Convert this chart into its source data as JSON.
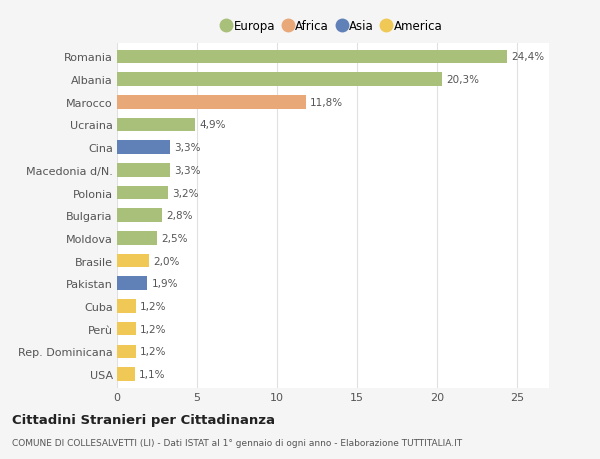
{
  "countries": [
    "Romania",
    "Albania",
    "Marocco",
    "Ucraina",
    "Cina",
    "Macedonia d/N.",
    "Polonia",
    "Bulgaria",
    "Moldova",
    "Brasile",
    "Pakistan",
    "Cuba",
    "Perù",
    "Rep. Dominicana",
    "USA"
  ],
  "values": [
    24.4,
    20.3,
    11.8,
    4.9,
    3.3,
    3.3,
    3.2,
    2.8,
    2.5,
    2.0,
    1.9,
    1.2,
    1.2,
    1.2,
    1.1
  ],
  "labels": [
    "24,4%",
    "20,3%",
    "11,8%",
    "4,9%",
    "3,3%",
    "3,3%",
    "3,2%",
    "2,8%",
    "2,5%",
    "2,0%",
    "1,9%",
    "1,2%",
    "1,2%",
    "1,2%",
    "1,1%"
  ],
  "continents": [
    "Europa",
    "Europa",
    "Africa",
    "Europa",
    "Asia",
    "Europa",
    "Europa",
    "Europa",
    "Europa",
    "America",
    "Asia",
    "America",
    "America",
    "America",
    "America"
  ],
  "colors": {
    "Europa": "#a8c07a",
    "Africa": "#e8a878",
    "Asia": "#6080b8",
    "America": "#f0c855"
  },
  "legend_order": [
    "Europa",
    "Africa",
    "Asia",
    "America"
  ],
  "xlim": [
    0,
    27
  ],
  "xticks": [
    0,
    5,
    10,
    15,
    20,
    25
  ],
  "title": "Cittadini Stranieri per Cittadinanza",
  "subtitle": "COMUNE DI COLLESALVETTI (LI) - Dati ISTAT al 1° gennaio di ogni anno - Elaborazione TUTTITALIA.IT",
  "bg_color": "#f5f5f5",
  "bar_bg_color": "#ffffff",
  "grid_color": "#e0e0e0"
}
